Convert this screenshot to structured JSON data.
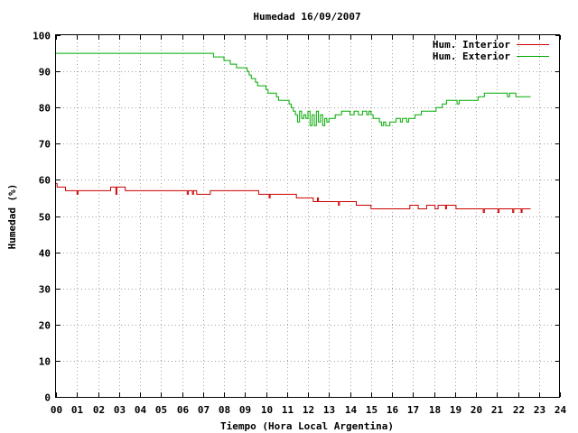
{
  "chart_data": {
    "type": "line",
    "title": "Humedad 16/09/2007",
    "xlabel": "Tiempo (Hora Local Argentina)",
    "ylabel": "Humedad (%)",
    "xlim": [
      0,
      24
    ],
    "ylim": [
      0,
      100
    ],
    "x_ticks": [
      "00",
      "01",
      "02",
      "03",
      "04",
      "05",
      "06",
      "07",
      "08",
      "09",
      "10",
      "11",
      "12",
      "13",
      "14",
      "15",
      "16",
      "17",
      "18",
      "19",
      "20",
      "21",
      "22",
      "23",
      "24"
    ],
    "y_ticks": [
      "0",
      "10",
      "20",
      "30",
      "40",
      "50",
      "60",
      "70",
      "80",
      "90",
      "100"
    ],
    "grid": true,
    "legend_position": "top-right",
    "series": [
      {
        "name": "Hum. Interior",
        "color": "#cc0000",
        "points": [
          [
            0.0,
            59
          ],
          [
            0.05,
            58
          ],
          [
            0.4,
            58
          ],
          [
            0.45,
            57
          ],
          [
            0.9,
            57
          ],
          [
            1.0,
            56
          ],
          [
            1.05,
            57
          ],
          [
            2.5,
            57
          ],
          [
            2.6,
            58
          ],
          [
            2.8,
            58
          ],
          [
            2.85,
            56
          ],
          [
            2.9,
            58
          ],
          [
            3.2,
            58
          ],
          [
            3.3,
            57
          ],
          [
            6.2,
            57
          ],
          [
            6.25,
            56
          ],
          [
            6.3,
            57
          ],
          [
            6.5,
            56
          ],
          [
            6.55,
            57
          ],
          [
            6.7,
            56
          ],
          [
            7.3,
            56
          ],
          [
            7.35,
            57
          ],
          [
            9.6,
            57
          ],
          [
            9.65,
            56
          ],
          [
            10.1,
            56
          ],
          [
            10.15,
            55
          ],
          [
            10.2,
            56
          ],
          [
            11.4,
            56
          ],
          [
            11.45,
            55
          ],
          [
            12.2,
            55
          ],
          [
            12.25,
            54
          ],
          [
            12.4,
            54
          ],
          [
            12.45,
            55
          ],
          [
            12.5,
            54
          ],
          [
            13.4,
            54
          ],
          [
            13.45,
            53
          ],
          [
            13.5,
            54
          ],
          [
            14.2,
            54
          ],
          [
            14.3,
            53
          ],
          [
            14.9,
            53
          ],
          [
            15.0,
            52
          ],
          [
            16.8,
            52
          ],
          [
            16.85,
            53
          ],
          [
            17.2,
            53
          ],
          [
            17.25,
            52
          ],
          [
            17.6,
            52
          ],
          [
            17.65,
            53
          ],
          [
            18.0,
            53
          ],
          [
            18.05,
            52
          ],
          [
            18.2,
            53
          ],
          [
            18.5,
            53
          ],
          [
            18.55,
            52
          ],
          [
            18.6,
            53
          ],
          [
            19.0,
            53
          ],
          [
            19.05,
            52
          ],
          [
            20.3,
            52
          ],
          [
            20.35,
            51
          ],
          [
            20.4,
            52
          ],
          [
            21.0,
            52
          ],
          [
            21.05,
            51
          ],
          [
            21.1,
            52
          ],
          [
            21.7,
            52
          ],
          [
            21.75,
            51
          ],
          [
            21.8,
            52
          ],
          [
            22.1,
            52
          ],
          [
            22.15,
            51
          ],
          [
            22.2,
            52
          ],
          [
            22.6,
            52
          ]
        ]
      },
      {
        "name": "Hum. Exterior",
        "color": "#00aa00",
        "points": [
          [
            0.0,
            95
          ],
          [
            7.4,
            95
          ],
          [
            7.5,
            94
          ],
          [
            7.9,
            94
          ],
          [
            8.0,
            93
          ],
          [
            8.2,
            93
          ],
          [
            8.3,
            92
          ],
          [
            8.5,
            92
          ],
          [
            8.6,
            91
          ],
          [
            9.0,
            91
          ],
          [
            9.1,
            90
          ],
          [
            9.2,
            89
          ],
          [
            9.3,
            88
          ],
          [
            9.5,
            87
          ],
          [
            9.6,
            86
          ],
          [
            9.9,
            86
          ],
          [
            10.0,
            85
          ],
          [
            10.1,
            84
          ],
          [
            10.4,
            84
          ],
          [
            10.5,
            83
          ],
          [
            10.6,
            82
          ],
          [
            11.0,
            82
          ],
          [
            11.1,
            81
          ],
          [
            11.2,
            80
          ],
          [
            11.3,
            79
          ],
          [
            11.4,
            78
          ],
          [
            11.5,
            76
          ],
          [
            11.6,
            79
          ],
          [
            11.7,
            77
          ],
          [
            11.8,
            78
          ],
          [
            11.9,
            77
          ],
          [
            12.0,
            79
          ],
          [
            12.1,
            75
          ],
          [
            12.2,
            78
          ],
          [
            12.3,
            75
          ],
          [
            12.4,
            79
          ],
          [
            12.5,
            76
          ],
          [
            12.6,
            78
          ],
          [
            12.7,
            75
          ],
          [
            12.8,
            77
          ],
          [
            12.9,
            76
          ],
          [
            13.0,
            77
          ],
          [
            13.2,
            77
          ],
          [
            13.3,
            78
          ],
          [
            13.5,
            78
          ],
          [
            13.6,
            79
          ],
          [
            13.9,
            79
          ],
          [
            14.0,
            78
          ],
          [
            14.2,
            79
          ],
          [
            14.4,
            78
          ],
          [
            14.6,
            79
          ],
          [
            14.8,
            78
          ],
          [
            14.9,
            79
          ],
          [
            15.0,
            78
          ],
          [
            15.1,
            77
          ],
          [
            15.3,
            77
          ],
          [
            15.4,
            76
          ],
          [
            15.5,
            75
          ],
          [
            15.6,
            76
          ],
          [
            15.7,
            75
          ],
          [
            15.9,
            76
          ],
          [
            16.2,
            77
          ],
          [
            16.4,
            76
          ],
          [
            16.5,
            77
          ],
          [
            16.7,
            76
          ],
          [
            16.8,
            77
          ],
          [
            17.0,
            77
          ],
          [
            17.1,
            78
          ],
          [
            17.3,
            78
          ],
          [
            17.4,
            79
          ],
          [
            18.0,
            79
          ],
          [
            18.1,
            80
          ],
          [
            18.3,
            80
          ],
          [
            18.4,
            81
          ],
          [
            18.6,
            82
          ],
          [
            19.0,
            82
          ],
          [
            19.1,
            81
          ],
          [
            19.2,
            82
          ],
          [
            20.0,
            82
          ],
          [
            20.1,
            83
          ],
          [
            20.3,
            83
          ],
          [
            20.4,
            84
          ],
          [
            21.4,
            84
          ],
          [
            21.5,
            83
          ],
          [
            21.6,
            84
          ],
          [
            21.8,
            84
          ],
          [
            21.9,
            83
          ],
          [
            22.6,
            83
          ]
        ]
      }
    ]
  }
}
